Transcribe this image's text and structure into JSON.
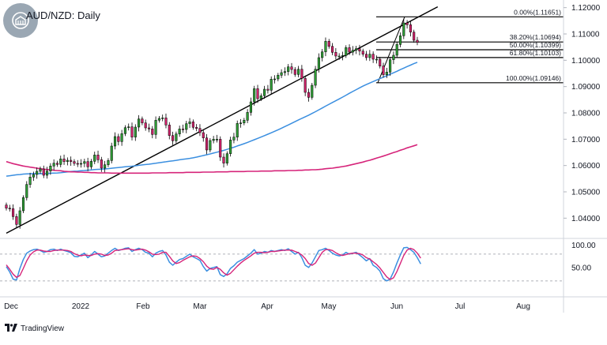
{
  "header": {
    "title": "AUD/NZD: Daily",
    "logo_icon": "globe-building-icon"
  },
  "footer": {
    "brand": "TradingView",
    "brand_icon": "tradingview-logo-icon"
  },
  "colors": {
    "bull": "#2e9e35",
    "bear": "#d1216a",
    "ma_fast": "#3b8fe0",
    "ma_slow": "#d6247a",
    "stoch_k": "#3b8fe0",
    "stoch_d": "#d6247a",
    "trendline": "#000000",
    "fib": "#000000"
  },
  "chart_data": [
    {
      "type": "candlestick",
      "title": "AUD/NZD: Daily",
      "x_tick_labels": [
        "Dec",
        "2022",
        "Feb",
        "Mar",
        "Apr",
        "May",
        "Jun",
        "Jul",
        "Aug"
      ],
      "y_tick_labels": [
        "1.12000",
        "1.11000",
        "1.10000",
        "1.09000",
        "1.08000",
        "1.07000",
        "1.06000",
        "1.05000",
        "1.04000"
      ],
      "ylim": [
        1.0335,
        1.1205
      ],
      "y_axis_side": "right",
      "grid": false,
      "closes": [
        1.0438,
        1.0436,
        1.0406,
        1.0376,
        1.0428,
        1.0478,
        1.0528,
        1.0556,
        1.0566,
        1.0578,
        1.0587,
        1.0563,
        1.0579,
        1.0598,
        1.0609,
        1.0604,
        1.0625,
        1.0615,
        1.062,
        1.0615,
        1.0608,
        1.0605,
        1.0608,
        1.0615,
        1.0595,
        1.0616,
        1.064,
        1.0622,
        1.059,
        1.0603,
        1.0619,
        1.0674,
        1.071,
        1.0691,
        1.0721,
        1.0744,
        1.0747,
        1.0708,
        1.0746,
        1.0777,
        1.0762,
        1.0743,
        1.0739,
        1.0718,
        1.0772,
        1.0779,
        1.0781,
        1.0754,
        1.0714,
        1.0694,
        1.072,
        1.0739,
        1.0737,
        1.0759,
        1.0766,
        1.0745,
        1.0741,
        1.0725,
        1.0705,
        1.0659,
        1.0695,
        1.07,
        1.07,
        1.0632,
        1.0609,
        1.0645,
        1.0697,
        1.0708,
        1.076,
        1.0762,
        1.0772,
        1.0802,
        1.0842,
        1.0892,
        1.0854,
        1.0865,
        1.089,
        1.0886,
        1.0928,
        1.0929,
        1.0943,
        1.0953,
        1.0957,
        1.0975,
        1.0965,
        1.0946,
        1.0966,
        1.0931,
        1.0878,
        1.0859,
        1.0905,
        1.0966,
        1.101,
        1.1032,
        1.1072,
        1.1053,
        1.103,
        1.1016,
        1.1016,
        1.1018,
        1.1048,
        1.1031,
        1.1038,
        1.1044,
        1.1035,
        1.1023,
        1.101,
        1.1023,
        1.1004,
        1.1004,
        1.0978,
        1.0945,
        1.0955,
        1.1002,
        1.1019,
        1.106,
        1.1093,
        1.1142,
        1.1135,
        1.1107,
        1.1076,
        1.1068
      ],
      "series": [
        {
          "name": "",
          "values": [
            1.05598,
            1.05613,
            1.05631,
            1.05648,
            1.05658,
            1.05675,
            1.05682,
            1.05688,
            1.05693,
            1.05691,
            1.05693,
            1.05689,
            1.05697,
            1.05707,
            1.05713,
            1.05718,
            1.0573,
            1.05745,
            1.0576,
            1.05774,
            1.05783,
            1.05789,
            1.058,
            1.05811,
            1.05821,
            1.05834,
            1.05846,
            1.05855,
            1.0586,
            1.05869,
            1.05881,
            1.05896,
            1.05912,
            1.05924,
            1.05937,
            1.0595,
            1.05964,
            1.05976,
            1.05989,
            1.06007,
            1.06023,
            1.06039,
            1.06051,
            1.06068,
            1.06087,
            1.06106,
            1.06126,
            1.06144,
            1.06163,
            1.0618,
            1.06197,
            1.06217,
            1.06236,
            1.06253,
            1.06273,
            1.06294,
            1.0632,
            1.06349,
            1.06381,
            1.06409,
            1.06441,
            1.06474,
            1.06506,
            1.06539,
            1.06574,
            1.06614,
            1.06655,
            1.06696,
            1.06742,
            1.06786,
            1.06831,
            1.06878,
            1.06928,
            1.06981,
            1.07032,
            1.07083,
            1.07137,
            1.07189,
            1.07243,
            1.073,
            1.07357,
            1.07418,
            1.0748,
            1.07542,
            1.07605,
            1.07667,
            1.07732,
            1.07794,
            1.07853,
            1.07914,
            1.07979,
            1.08046,
            1.08116,
            1.08187,
            1.08258,
            1.08328,
            1.08395,
            1.08461,
            1.08531,
            1.086,
            1.08673,
            1.08744,
            1.08814,
            1.08883,
            1.0895,
            1.09016,
            1.09076,
            1.09135,
            1.09192,
            1.09249,
            1.09304,
            1.09356,
            1.09412,
            1.09467,
            1.09524,
            1.09581,
            1.09643,
            1.09701,
            1.0976,
            1.09816,
            1.09871,
            1.09923
          ]
        },
        {
          "name": "",
          "values": [
            1.0615,
            1.0611,
            1.0607,
            1.0604,
            1.0601,
            1.0598,
            1.0596,
            1.0594,
            1.0592,
            1.059,
            1.0588,
            1.0586,
            1.0585,
            1.0584,
            1.0582,
            1.0581,
            1.058,
            1.0578,
            1.0577,
            1.0576,
            1.0576,
            1.0575,
            1.0575,
            1.0574,
            1.0574,
            1.0573,
            1.0573,
            1.0572,
            1.0572,
            1.0572,
            1.0572,
            1.0571,
            1.0571,
            1.0571,
            1.0571,
            1.0571,
            1.0571,
            1.0571,
            1.0571,
            1.0571,
            1.0571,
            1.0571,
            1.0571,
            1.0572,
            1.0572,
            1.0572,
            1.0572,
            1.0572,
            1.0573,
            1.0573,
            1.0573,
            1.0573,
            1.0573,
            1.0574,
            1.0574,
            1.0574,
            1.0574,
            1.0574,
            1.0575,
            1.0575,
            1.0575,
            1.0575,
            1.0576,
            1.0576,
            1.0576,
            1.0576,
            1.0577,
            1.0577,
            1.0577,
            1.0577,
            1.0577,
            1.0578,
            1.0578,
            1.0578,
            1.0578,
            1.0579,
            1.0579,
            1.0579,
            1.0579,
            1.058,
            1.058,
            1.058,
            1.058,
            1.0581,
            1.0581,
            1.0581,
            1.0582,
            1.0582,
            1.0583,
            1.0583,
            1.0584,
            1.0584,
            1.0585,
            1.0586,
            1.0588,
            1.0589,
            1.059,
            1.0592,
            1.0594,
            1.0596,
            1.0598,
            1.0601,
            1.0604,
            1.0607,
            1.061,
            1.0613,
            1.0617,
            1.062,
            1.0624,
            1.0628,
            1.0632,
            1.0636,
            1.064,
            1.0645,
            1.0649,
            1.0653,
            1.0658,
            1.0662,
            1.0667,
            1.0671,
            1.0675,
            1.0679
          ]
        }
      ],
      "trendline": {
        "start": [
          0,
          1.0343
        ],
        "end": [
          127,
          1.1203
        ]
      },
      "fibonacci": [
        {
          "label": "0.00%(1.11651)",
          "value": 1.11651
        },
        {
          "label": "38.20%(1.10694)",
          "value": 1.10694
        },
        {
          "label": "50.00%(1.10399)",
          "value": 1.10399
        },
        {
          "label": "61.80%(1.10103)",
          "value": 1.10103
        },
        {
          "label": "100.00%(1.09146)",
          "value": 1.09146
        }
      ]
    },
    {
      "type": "line",
      "title": "",
      "y_tick_labels": [
        "100.00",
        "50.00"
      ],
      "ylim": [
        -5,
        108
      ],
      "levels": [
        80,
        20
      ],
      "series": [
        {
          "name": "",
          "values": [
            52,
            40,
            24,
            22,
            48,
            68,
            82,
            87,
            90,
            91,
            88,
            84,
            86,
            90,
            91,
            88,
            91,
            88,
            86,
            83,
            75,
            74,
            78,
            82,
            72,
            78,
            86,
            80,
            74,
            76,
            82,
            88,
            93,
            88,
            90,
            93,
            94,
            86,
            90,
            93,
            90,
            84,
            82,
            74,
            82,
            86,
            88,
            78,
            62,
            55,
            62,
            68,
            70,
            75,
            80,
            74,
            70,
            66,
            52,
            42,
            48,
            50,
            52,
            34,
            30,
            36,
            48,
            54,
            62,
            66,
            70,
            76,
            82,
            90,
            80,
            82,
            86,
            84,
            88,
            86,
            88,
            90,
            88,
            92,
            86,
            80,
            84,
            72,
            55,
            50,
            60,
            74,
            88,
            90,
            93,
            88,
            82,
            78,
            76,
            78,
            84,
            80,
            82,
            84,
            78,
            72,
            65,
            70,
            55,
            50,
            42,
            25,
            20,
            24,
            40,
            60,
            78,
            94,
            95,
            90,
            84,
            72,
            58
          ]
        },
        {
          "name": "",
          "values": [
            56,
            46,
            35,
            28,
            32,
            48,
            65,
            78,
            85,
            89,
            89,
            87,
            86,
            86,
            88,
            89,
            89,
            89,
            88,
            86,
            81,
            78,
            76,
            78,
            77,
            77,
            80,
            81,
            80,
            77,
            78,
            82,
            88,
            89,
            90,
            91,
            92,
            90,
            89,
            90,
            91,
            89,
            85,
            80,
            79,
            80,
            84,
            84,
            75,
            65,
            59,
            61,
            66,
            70,
            74,
            76,
            75,
            70,
            63,
            53,
            47,
            46,
            50,
            46,
            38,
            33,
            37,
            45,
            53,
            60,
            66,
            71,
            76,
            82,
            84,
            84,
            83,
            84,
            86,
            86,
            87,
            88,
            89,
            89,
            89,
            86,
            83,
            78,
            70,
            59,
            55,
            60,
            72,
            84,
            90,
            90,
            88,
            83,
            79,
            77,
            79,
            81,
            82,
            82,
            81,
            78,
            72,
            69,
            63,
            57,
            49,
            39,
            29,
            23,
            27,
            41,
            59,
            77,
            89,
            93,
            90,
            82,
            71
          ]
        }
      ]
    }
  ]
}
